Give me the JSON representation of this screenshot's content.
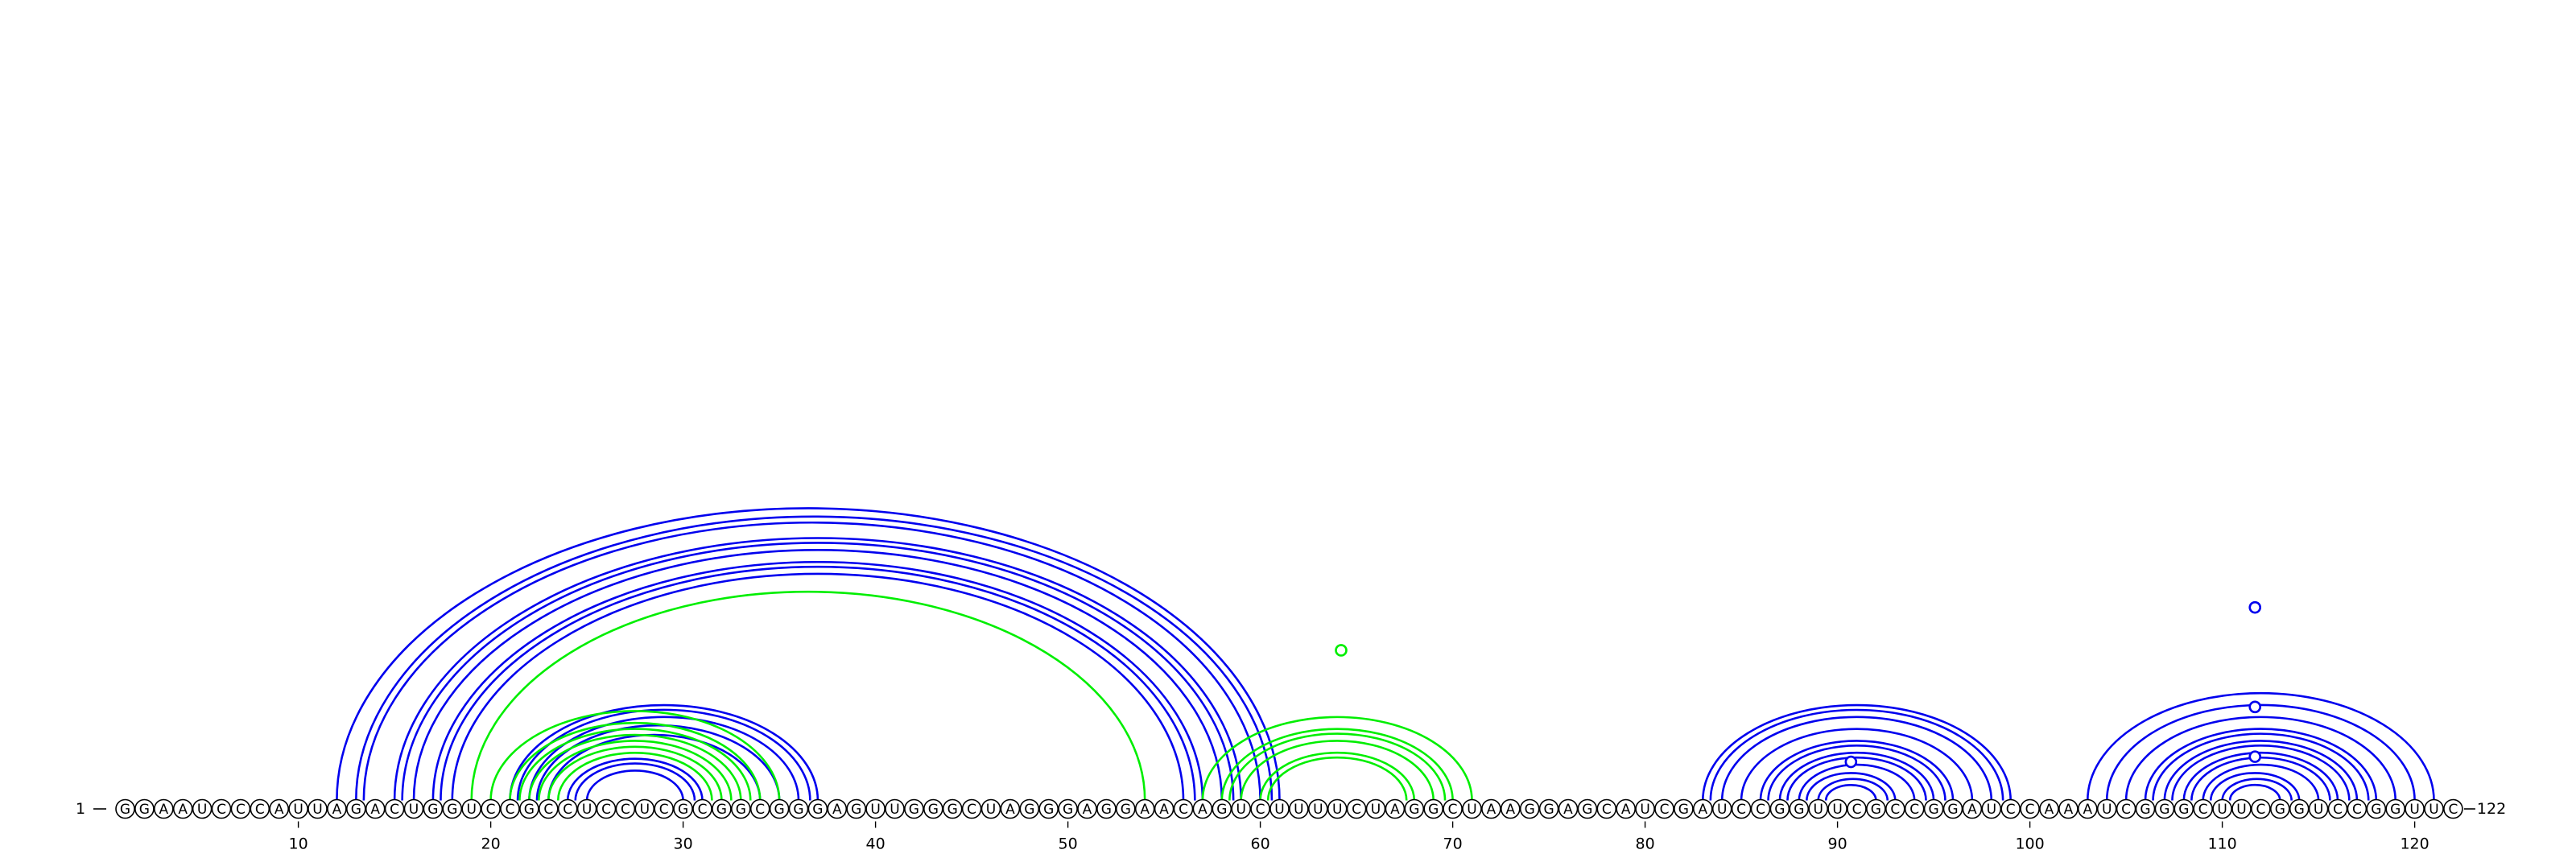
{
  "sequence": "GGAAUCCCAUUAGACUGGUCCGCCUCCUCGCGGCGGGAGUUGGGCUAGGGAGGAACAGUCUUUUCUAGGCUAAGGAGCAUCGAUCCGGUUCGCCGGAUCCAAAUCGGGCUUCGGUCCGGUUC",
  "start_label": "1",
  "end_label": "122",
  "position_ticks": [
    {
      "pos": 10,
      "label": "10"
    },
    {
      "pos": 20,
      "label": "20"
    },
    {
      "pos": 30,
      "label": "30"
    },
    {
      "pos": 40,
      "label": "40"
    },
    {
      "pos": 50,
      "label": "50"
    },
    {
      "pos": 60,
      "label": "60"
    },
    {
      "pos": 70,
      "label": "70"
    },
    {
      "pos": 80,
      "label": "80"
    },
    {
      "pos": 90,
      "label": "90"
    },
    {
      "pos": 100,
      "label": "100"
    },
    {
      "pos": 110,
      "label": "110"
    },
    {
      "pos": 120,
      "label": "120"
    }
  ],
  "colors": {
    "structure_a": "#0000ee",
    "structure_b": "#00ee00"
  },
  "arcs": [
    {
      "i": 12,
      "j": 61,
      "color": "structure_a"
    },
    {
      "i": 13,
      "j": 60.6,
      "color": "structure_a"
    },
    {
      "i": 13.4,
      "j": 60,
      "color": "structure_a"
    },
    {
      "i": 15,
      "j": 59,
      "color": "structure_a"
    },
    {
      "i": 15.4,
      "j": 58.6,
      "color": "structure_a"
    },
    {
      "i": 16,
      "j": 58,
      "color": "structure_a"
    },
    {
      "i": 17,
      "j": 57,
      "color": "structure_a"
    },
    {
      "i": 17.4,
      "j": 56.6,
      "color": "structure_a"
    },
    {
      "i": 18,
      "j": 56,
      "color": "structure_a"
    },
    {
      "i": 19,
      "j": 54,
      "color": "structure_b"
    },
    {
      "i": 21,
      "j": 37,
      "color": "structure_a"
    },
    {
      "i": 21.4,
      "j": 36.6,
      "color": "structure_a"
    },
    {
      "i": 22,
      "j": 36,
      "color": "structure_a"
    },
    {
      "i": 22.4,
      "j": 35,
      "color": "structure_a"
    },
    {
      "i": 23,
      "j": 34,
      "color": "structure_a"
    },
    {
      "i": 24,
      "j": 31,
      "color": "structure_a"
    },
    {
      "i": 24.4,
      "j": 30.6,
      "color": "structure_a"
    },
    {
      "i": 25,
      "j": 30,
      "color": "structure_a"
    },
    {
      "i": 20,
      "j": 35,
      "color": "structure_b"
    },
    {
      "i": 21,
      "j": 34,
      "color": "structure_b"
    },
    {
      "i": 21.5,
      "j": 33.5,
      "color": "structure_b"
    },
    {
      "i": 22,
      "j": 33,
      "color": "structure_b"
    },
    {
      "i": 22.5,
      "j": 32.5,
      "color": "structure_b"
    },
    {
      "i": 23,
      "j": 32,
      "color": "structure_b"
    },
    {
      "i": 23.5,
      "j": 31.5,
      "color": "structure_b"
    },
    {
      "i": 57,
      "j": 71,
      "color": "structure_b"
    },
    {
      "i": 58,
      "j": 70,
      "color": "structure_b"
    },
    {
      "i": 58.4,
      "j": 69.6,
      "color": "structure_b"
    },
    {
      "i": 59,
      "j": 69,
      "color": "structure_b"
    },
    {
      "i": 60,
      "j": 68,
      "color": "structure_b"
    },
    {
      "i": 60.4,
      "j": 67.6,
      "color": "structure_b"
    },
    {
      "i": 83,
      "j": 99,
      "color": "structure_a"
    },
    {
      "i": 83.4,
      "j": 98.6,
      "color": "structure_a"
    },
    {
      "i": 84,
      "j": 98,
      "color": "structure_a"
    },
    {
      "i": 85,
      "j": 97,
      "color": "structure_a"
    },
    {
      "i": 86,
      "j": 96,
      "color": "structure_a"
    },
    {
      "i": 86.4,
      "j": 95.6,
      "color": "structure_a"
    },
    {
      "i": 87,
      "j": 95,
      "color": "structure_a"
    },
    {
      "i": 87.4,
      "j": 94.6,
      "color": "structure_a"
    },
    {
      "i": 88,
      "j": 94,
      "color": "structure_a"
    },
    {
      "i": 88.4,
      "j": 93,
      "color": "structure_a"
    },
    {
      "i": 89,
      "j": 92.6,
      "color": "structure_a"
    },
    {
      "i": 89.4,
      "j": 92,
      "color": "structure_a"
    },
    {
      "i": 103,
      "j": 121,
      "color": "structure_a"
    },
    {
      "i": 104,
      "j": 120,
      "color": "structure_a"
    },
    {
      "i": 105,
      "j": 119,
      "color": "structure_a"
    },
    {
      "i": 106,
      "j": 118,
      "color": "structure_a"
    },
    {
      "i": 106.4,
      "j": 117.6,
      "color": "structure_a"
    },
    {
      "i": 107,
      "j": 117,
      "color": "structure_a"
    },
    {
      "i": 107.4,
      "j": 116.6,
      "color": "structure_a"
    },
    {
      "i": 108,
      "j": 116,
      "color": "structure_a"
    },
    {
      "i": 108.4,
      "j": 115.6,
      "color": "structure_a"
    },
    {
      "i": 109,
      "j": 115,
      "color": "structure_a"
    },
    {
      "i": 109.4,
      "j": 114,
      "color": "structure_a"
    },
    {
      "i": 110,
      "j": 113.6,
      "color": "structure_a"
    },
    {
      "i": 110.4,
      "j": 113,
      "color": "structure_a"
    }
  ],
  "markers": [
    {
      "pos": 64.2,
      "level": 0.175,
      "color": "structure_b"
    },
    {
      "pos": 90.7,
      "level": 0.045,
      "color": "structure_a"
    },
    {
      "pos": 111.7,
      "level": 0.225,
      "color": "structure_a"
    },
    {
      "pos": 111.7,
      "level": 0.109,
      "color": "structure_a"
    },
    {
      "pos": 111.7,
      "level": 0.051,
      "color": "structure_a"
    }
  ]
}
